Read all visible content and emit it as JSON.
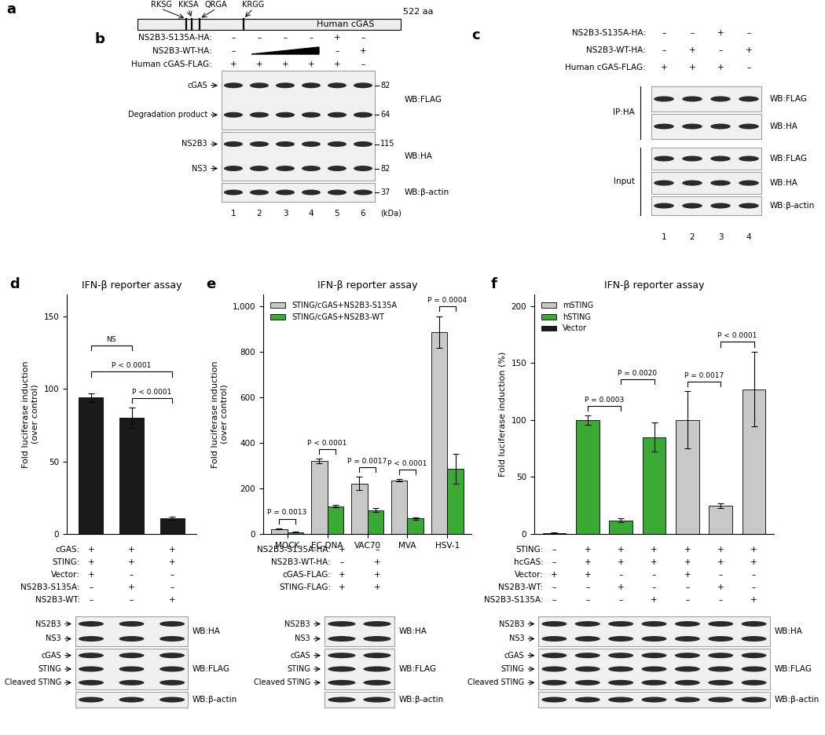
{
  "panels": {
    "a": {
      "label": "a",
      "sites": [
        "RKSG",
        "KKSA",
        "QRGA",
        "KRGG"
      ],
      "protein": "Human cGAS",
      "length": "522 aa"
    },
    "b": {
      "label": "b",
      "conditions": [
        {
          "label": "NS2B3-S135A-HA:",
          "marks": [
            "–",
            "–",
            "–",
            "–",
            "+",
            "–"
          ]
        },
        {
          "label": "NS2B3-WT-HA:",
          "marks": [
            "–",
            null,
            null,
            null,
            "–",
            "+"
          ]
        },
        {
          "label": "Human cGAS-FLAG:",
          "marks": [
            "+",
            "+",
            "+",
            "+",
            "+",
            "–"
          ]
        }
      ],
      "blots": [
        {
          "wb": "WB:FLAG",
          "bands": [
            "cGAS",
            "Degradation product"
          ],
          "markers": [
            82,
            64
          ]
        },
        {
          "wb": "WB:HA",
          "bands": [
            "NS2B3",
            "NS3"
          ],
          "markers": [
            115,
            82
          ]
        },
        {
          "wb": "WB:β-actin",
          "bands": [],
          "markers": [
            37
          ]
        }
      ],
      "unit": "(kDa)",
      "lanes": [
        1,
        2,
        3,
        4,
        5,
        6
      ]
    },
    "c": {
      "label": "c",
      "conditions": [
        {
          "label": "NS2B3-S135A-HA:",
          "marks": [
            "–",
            "–",
            "+",
            "–"
          ]
        },
        {
          "label": "NS2B3-WT-HA:",
          "marks": [
            "–",
            "+",
            "–",
            "+"
          ]
        },
        {
          "label": "Human cGAS-FLAG:",
          "marks": [
            "+",
            "+",
            "+",
            "–"
          ]
        }
      ],
      "groups": [
        {
          "name": "IP:HA",
          "blots": [
            {
              "wb": "WB:FLAG"
            },
            {
              "wb": "WB:HA"
            }
          ]
        },
        {
          "name": "Input",
          "blots": [
            {
              "wb": "WB:FLAG"
            },
            {
              "wb": "WB:HA"
            },
            {
              "wb": "WB:β-actin"
            }
          ]
        }
      ],
      "lanes": [
        1,
        2,
        3,
        4
      ]
    }
  },
  "chart_data": [
    {
      "type": "bar",
      "panel_label": "d",
      "title": "IFN-β reporter assay",
      "y_label": "Fold luciferase induction\n(over control)",
      "categories": [
        null,
        null,
        null
      ],
      "values": [
        94,
        80,
        11
      ],
      "errors": [
        3,
        7,
        1
      ],
      "color": "#1a1a1a",
      "ylim": [
        0,
        165
      ],
      "yticks": [
        0,
        50,
        100,
        150
      ],
      "tick_labels": "y",
      "significance": [
        {
          "from": 1,
          "to": 2,
          "label": "P < 0.0001"
        },
        {
          "from": 0,
          "to": 2,
          "label": "P < 0.0001"
        },
        {
          "from": 0,
          "to": 1,
          "label": "NS"
        }
      ],
      "conditions": [
        {
          "label": "cGAS:",
          "marks": [
            "+",
            "+",
            "+"
          ]
        },
        {
          "label": "STING:",
          "marks": [
            "+",
            "+",
            "+"
          ]
        },
        {
          "label": "Vector:",
          "marks": [
            "+",
            "–",
            "–"
          ]
        },
        {
          "label": "NS2B3-S135A:",
          "marks": [
            "–",
            "+",
            "–"
          ]
        },
        {
          "label": "NS2B3-WT:",
          "marks": [
            "–",
            "–",
            "+"
          ]
        }
      ],
      "blots": [
        {
          "wb": "WB:HA",
          "bands": [
            "NS2B3",
            "NS3"
          ]
        },
        {
          "wb": "WB:FLAG",
          "bands": [
            "cGAS",
            "STING",
            "Cleaved STING"
          ]
        },
        {
          "wb": "WB:β-actin",
          "bands": []
        }
      ]
    },
    {
      "type": "bar",
      "panel_label": "e",
      "title": "IFN-β reporter assay",
      "y_label": "Fold luciferase induction\n(over control)",
      "categories": [
        "MOCK",
        "EC-DNA",
        "VAC70",
        "MVA",
        "HSV-1"
      ],
      "series": [
        {
          "name": "STING/cGAS+NS2B3-S135A",
          "color": "#c8c8c8",
          "values": [
            22,
            320,
            222,
            235,
            885
          ],
          "errors": [
            3,
            10,
            30,
            5,
            70
          ]
        },
        {
          "name": "STING/cGAS+NS2B3-WT",
          "color": "#3aaa35",
          "values": [
            8,
            122,
            105,
            68,
            285
          ],
          "errors": [
            2,
            5,
            8,
            5,
            65
          ]
        }
      ],
      "legend": "upper left",
      "ylim": [
        0,
        1050
      ],
      "yticks": [
        0,
        200,
        400,
        600,
        800,
        {
          "value": 1000,
          "label": "1,000"
        }
      ],
      "significance": [
        {
          "category": 0,
          "label": "P = 0.0013"
        },
        {
          "category": 1,
          "label": "P < 0.0001"
        },
        {
          "category": 2,
          "label": "P = 0.0017"
        },
        {
          "category": 3,
          "label": "P < 0.0001"
        },
        {
          "category": 4,
          "label": "P = 0.0004"
        }
      ],
      "conditions": [
        {
          "label": "NS2B3-S135A-HA:",
          "marks": [
            "+",
            "–"
          ]
        },
        {
          "label": "NS2B3-WT-HA:",
          "marks": [
            "–",
            "+"
          ]
        },
        {
          "label": "cGAS-FLAG:",
          "marks": [
            "+",
            "+"
          ]
        },
        {
          "label": "STING-FLAG:",
          "marks": [
            "+",
            "+"
          ]
        }
      ],
      "blots": [
        {
          "wb": "WB:HA",
          "bands": [
            "NS2B3",
            "NS3"
          ]
        },
        {
          "wb": "WB:FLAG",
          "bands": [
            "cGAS",
            "STING",
            "Cleaved STING"
          ]
        },
        {
          "wb": "WB:β-actin",
          "bands": []
        }
      ]
    },
    {
      "type": "bar",
      "panel_label": "f",
      "title": "IFN-β reporter assay",
      "y_label": "Fold luciferase induction (%)",
      "categories": [
        null,
        null,
        null,
        null,
        null,
        null,
        null
      ],
      "series": [
        {
          "name": "mSTING",
          "color": "#c8c8c8",
          "values": [
            null,
            null,
            null,
            null,
            100,
            25,
            127
          ],
          "errors": [
            null,
            null,
            null,
            null,
            25,
            2,
            33
          ]
        },
        {
          "name": "hSTING",
          "color": "#3aaa35",
          "values": [
            null,
            100,
            12,
            85,
            null,
            null,
            null
          ],
          "errors": [
            null,
            4,
            2,
            13,
            null,
            null,
            null
          ]
        },
        {
          "name": "Vector",
          "color": "#1a1a1a",
          "values": [
            1,
            null,
            null,
            null,
            null,
            null,
            null
          ],
          "errors": [
            0.5,
            null,
            null,
            null,
            null,
            null,
            null
          ]
        }
      ],
      "legend": "upper left",
      "ylim": [
        0,
        210
      ],
      "yticks": [
        0,
        50,
        100,
        150,
        200
      ],
      "tick_labels": "y",
      "significance": [
        {
          "from": 1,
          "to": 2,
          "label": "P = 0.0003"
        },
        {
          "from": 2,
          "to": 3,
          "label": "P = 0.0020"
        },
        {
          "from": 4,
          "to": 5,
          "label": "P = 0.0017"
        },
        {
          "from": 5,
          "to": 6,
          "label": "P < 0.0001"
        }
      ],
      "conditions": [
        {
          "label": "STING:",
          "marks": [
            "–",
            "+",
            "+",
            "+",
            "+",
            "+",
            "+"
          ]
        },
        {
          "label": "hcGAS:",
          "marks": [
            "–",
            "+",
            "+",
            "+",
            "+",
            "+",
            "+"
          ]
        },
        {
          "label": "Vector:",
          "marks": [
            "+",
            "+",
            "–",
            "–",
            "+",
            "–",
            "–"
          ]
        },
        {
          "label": "NS2B3-WT:",
          "marks": [
            "–",
            "–",
            "+",
            "–",
            "–",
            "+",
            "–"
          ]
        },
        {
          "label": "NS2B3-S135A:",
          "marks": [
            "–",
            "–",
            "–",
            "+",
            "–",
            "–",
            "+"
          ]
        }
      ],
      "blots": [
        {
          "wb": "WB:HA",
          "bands": [
            "NS2B3",
            "NS3"
          ]
        },
        {
          "wb": "WB:FLAG",
          "bands": [
            "cGAS",
            "STING",
            "Cleaved STING"
          ]
        },
        {
          "wb": "WB:β-actin",
          "bands": []
        }
      ]
    }
  ]
}
